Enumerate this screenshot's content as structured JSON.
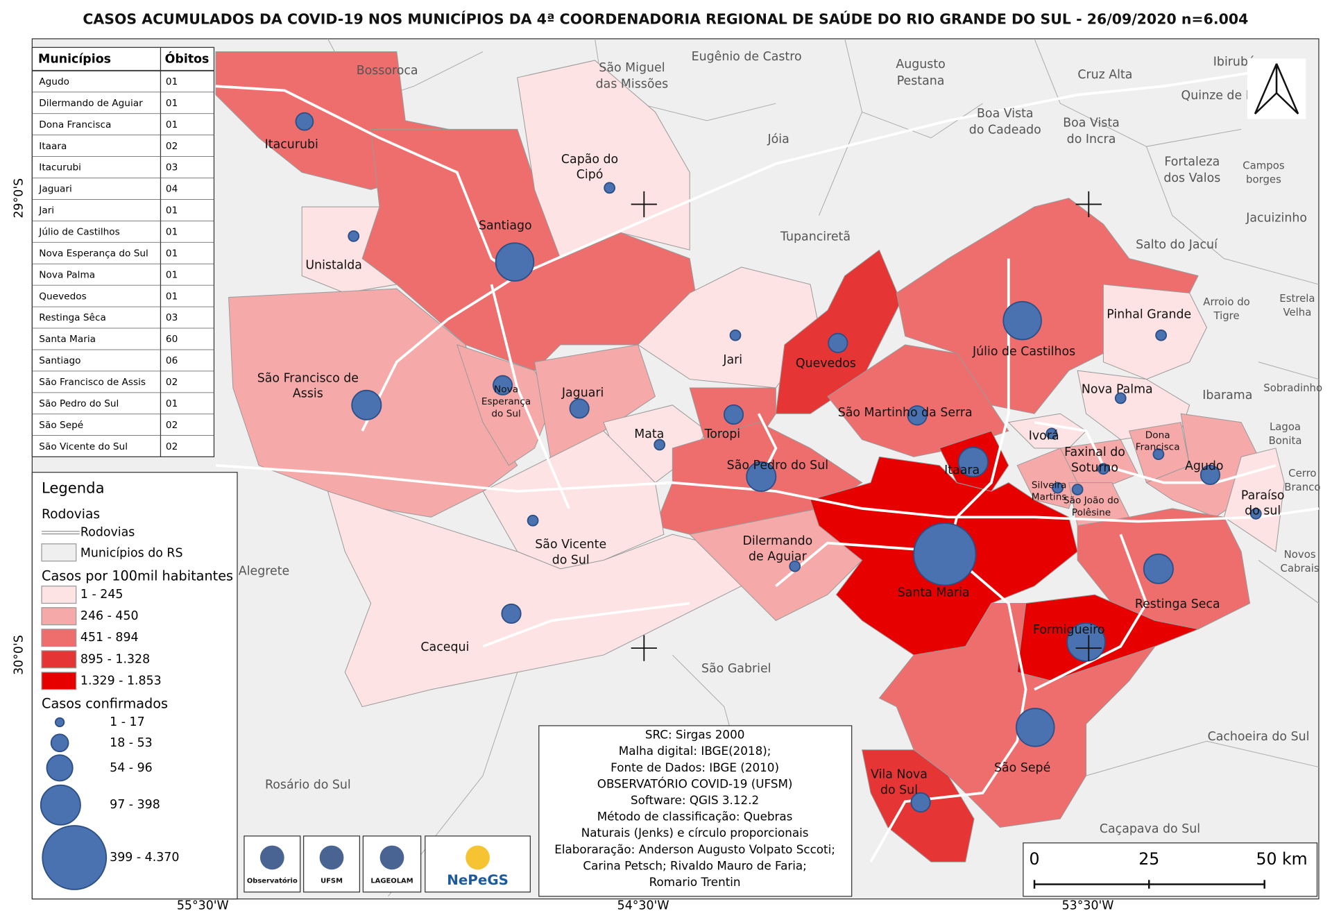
{
  "title": "CASOS ACUMULADOS DA COVID-19 NOS MUNICÍPIOS DA 4ª COORDENADORIA REGIONAL DE SAÚDE DO RIO GRANDE DO SUL - 26/09/2020 n=6.004",
  "table": {
    "header": [
      "Municípios",
      "Óbitos"
    ],
    "rows": [
      [
        "Agudo",
        "01"
      ],
      [
        "Dilermando de Aguiar",
        "01"
      ],
      [
        "Dona Francisca",
        "01"
      ],
      [
        "Itaara",
        "02"
      ],
      [
        "Itacurubi",
        "03"
      ],
      [
        "Jaguari",
        "04"
      ],
      [
        "Jari",
        "01"
      ],
      [
        "Júlio de Castilhos",
        "01"
      ],
      [
        "Nova Esperança do Sul",
        "01"
      ],
      [
        "Nova Palma",
        "01"
      ],
      [
        "Quevedos",
        "01"
      ],
      [
        "Restinga Sêca",
        "03"
      ],
      [
        "Santa Maria",
        "60"
      ],
      [
        "Santiago",
        "06"
      ],
      [
        "São Francisco de Assis",
        "02"
      ],
      [
        "São Pedro do Sul",
        "01"
      ],
      [
        "São Sepé",
        "02"
      ],
      [
        "São Vicente do Sul",
        "02"
      ]
    ]
  },
  "legend": {
    "title": "Legenda",
    "road_group": "Rodovias",
    "road_label": "Rodovias",
    "rs_label": "Municípios do RS",
    "rate_title": "Casos por 100mil habitantes",
    "rate_classes": [
      "1 - 245",
      "246 - 450",
      "451 - 894",
      "895 - 1.328",
      "1.329 - 1.853"
    ],
    "cases_title": "Casos confirmados",
    "case_classes": [
      "1 - 17",
      "18 - 53",
      "54 - 96",
      "97 - 398",
      "399 - 4.370"
    ]
  },
  "municipalities": [
    [
      "Itacurubi"
    ],
    [
      "Santiago"
    ],
    [
      "Capão do",
      "Cipó"
    ],
    [
      "Unistalda"
    ],
    [
      "São Francisco de",
      "Assis"
    ],
    [
      "Nova",
      "Esperança",
      "do Sul"
    ],
    [
      "Jaguari"
    ],
    [
      "Mata"
    ],
    [
      "Jari"
    ],
    [
      "Quevedos"
    ],
    [
      "Toropi"
    ],
    [
      "São Pedro do Sul"
    ],
    [
      "São Vicente",
      "do Sul"
    ],
    [
      "Cacequi"
    ],
    [
      "Dilermando",
      "de Aguiar"
    ],
    [
      "São Martinho da Serra"
    ],
    [
      "Júlio de Castilhos"
    ],
    [
      "Pinhal Grande"
    ],
    [
      "Nova Palma"
    ],
    [
      "Ivorá"
    ],
    [
      "Faxinal do",
      "Soturno"
    ],
    [
      "Dona",
      "Francisca"
    ],
    [
      "Agudo"
    ],
    [
      "Paraíso",
      "do sul"
    ],
    [
      "Itaara"
    ],
    [
      "Silveira",
      "Martins"
    ],
    [
      "São João do",
      "Polêsine"
    ],
    [
      "Santa Maria"
    ],
    [
      "Restinga Seca"
    ],
    [
      "Formigueiro"
    ],
    [
      "São Sepé"
    ],
    [
      "Vila Nova",
      "do Sul"
    ]
  ],
  "neighbors": [
    [
      "Bossoroca"
    ],
    [
      "São Miguel",
      "das Missões"
    ],
    [
      "Eugênio de Castro"
    ],
    [
      "Augusto",
      "Pestana"
    ],
    [
      "Cruz Alta"
    ],
    [
      "Ibirubá"
    ],
    [
      "Quinze de N"
    ],
    [
      "Boa Vista",
      "do Cadeado"
    ],
    [
      "Boa Vista",
      "do Incra"
    ],
    [
      "Jóia"
    ],
    [
      "Fortaleza",
      "dos Valos"
    ],
    [
      "Campos",
      "borges"
    ],
    [
      "Jacuizinho"
    ],
    [
      "Tupanciretã"
    ],
    [
      "Salto do Jacuí"
    ],
    [
      "Arroio do",
      "Tigre"
    ],
    [
      "Estrela",
      "Velha"
    ],
    [
      "Ibarama"
    ],
    [
      "Sobradinho"
    ],
    [
      "Lagoa",
      "Bonita"
    ],
    [
      "Cerro",
      "Branco"
    ],
    [
      "Novos",
      "Cabrais"
    ],
    [
      "Alegrete"
    ],
    [
      "São Gabriel"
    ],
    [
      "Rosário do Sul"
    ],
    [
      "Cachoeira do Sul"
    ],
    [
      "Caçapava do Sul"
    ]
  ],
  "info": [
    "SRC: Sirgas 2000",
    "Malha digital: IBGE(2018);",
    "Fonte de Dados: IBGE (2010)",
    "OBSERVATÓRIO COVID-19 (UFSM)",
    "Software: QGIS 3.12.2",
    "Método de classificação: Quebras",
    "Naturais (Jenks) e círculo proporcionais",
    "Elaboraração: Anderson Augusto Volpato Sccoti;",
    "Carina Petsch; Rivaldo Mauro de Faria;",
    "Romario Trentin"
  ],
  "scale": [
    "0",
    "25",
    "50 km"
  ],
  "lat": [
    "29°0'S",
    "30°0'S"
  ],
  "lon": [
    "55°30'W",
    "54°30'W",
    "53°30'W"
  ],
  "logos": [
    "Observatório",
    "UFSM",
    "LAGEOLAM",
    "NePeGS"
  ]
}
